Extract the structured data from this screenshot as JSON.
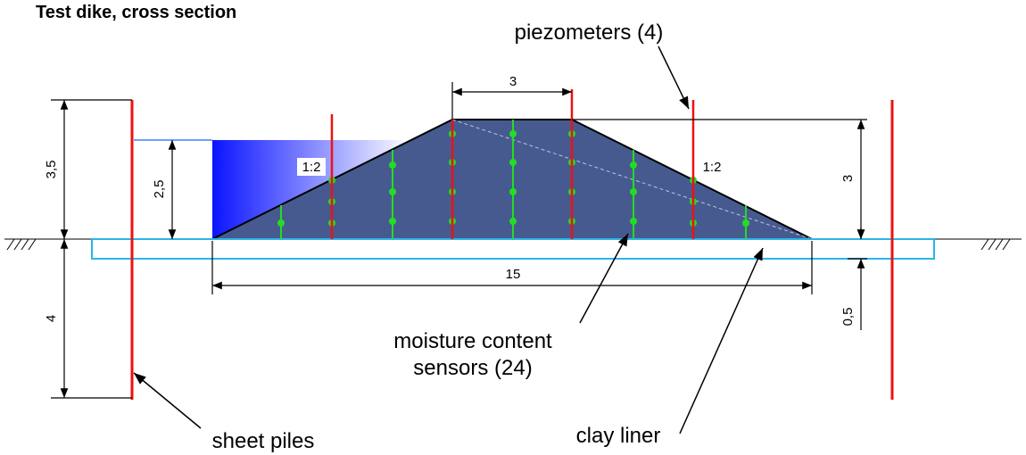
{
  "title": "Test dike, cross section",
  "labels": {
    "piezometers": "piezometers (4)",
    "moisture_line1": "moisture content",
    "moisture_line2": "sensors (24)",
    "clay_liner": "clay liner",
    "sheet_piles": "sheet piles"
  },
  "dimensions": {
    "crest_width": "3",
    "total_height": "3,5",
    "water_depth": "2,5",
    "dike_height": "3",
    "base_width": "15",
    "pile_depth": "4",
    "liner_thickness": "0,5",
    "slope_left": "1:2",
    "slope_right": "1:2"
  }
}
